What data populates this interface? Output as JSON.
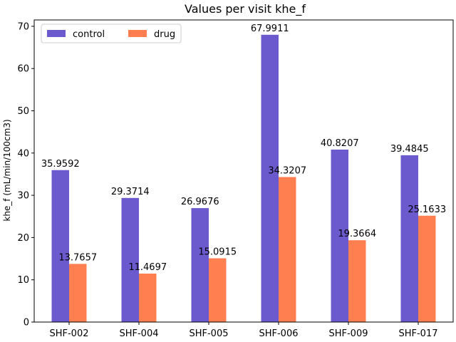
{
  "chart_data": {
    "type": "bar",
    "title": "Values per visit khe_f",
    "xlabel": "",
    "ylabel": "khe_f (mL/min/100cm3)",
    "categories": [
      "SHF-002",
      "SHF-004",
      "SHF-005",
      "SHF-006",
      "SHF-009",
      "SHF-017"
    ],
    "series": [
      {
        "name": "control",
        "color": "#6a5acd",
        "values": [
          35.9592,
          29.3714,
          26.9676,
          67.9911,
          40.8207,
          39.4845
        ],
        "labels": [
          "35.9592",
          "29.3714",
          "26.9676",
          "67.9911",
          "40.8207",
          "39.4845"
        ]
      },
      {
        "name": "drug",
        "color": "#ff7f50",
        "values": [
          13.7657,
          11.4697,
          15.0915,
          34.3207,
          19.3664,
          25.1633
        ],
        "labels": [
          "13.7657",
          "11.4697",
          "15.0915",
          "34.3207",
          "19.3664",
          "25.1633"
        ]
      }
    ],
    "ylim": [
      0,
      71.5
    ],
    "yticks": [
      0,
      10,
      20,
      30,
      40,
      50,
      60,
      70
    ],
    "grid": false,
    "legend": "top-left"
  }
}
